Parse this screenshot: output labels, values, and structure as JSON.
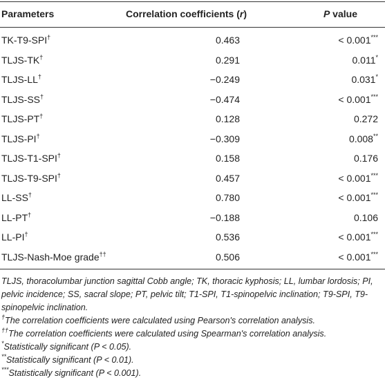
{
  "table": {
    "header": {
      "parameter": "Parameters",
      "r": [
        "Correlation coefficients (",
        "r",
        ")"
      ],
      "p": [
        "P",
        " value"
      ]
    },
    "rows": [
      {
        "name": "TK-T9-SPI",
        "sup": "†",
        "r": "0.463",
        "p": "< 0.001",
        "p_sup": "***"
      },
      {
        "name": "TLJS-TK",
        "sup": "†",
        "r": "0.291",
        "p": "0.011",
        "p_sup": "*"
      },
      {
        "name": "TLJS-LL",
        "sup": "†",
        "r": "−0.249",
        "p": "0.031",
        "p_sup": "*"
      },
      {
        "name": "TLJS-SS",
        "sup": "†",
        "r": "−0.474",
        "p": "< 0.001",
        "p_sup": "***"
      },
      {
        "name": "TLJS-PT",
        "sup": "†",
        "r": "0.128",
        "p": "0.272"
      },
      {
        "name": "TLJS-PI",
        "sup": "†",
        "r": "−0.309",
        "p": "0.008",
        "p_sup": "**"
      },
      {
        "name": "TLJS-T1-SPI",
        "sup": "†",
        "r": "0.158",
        "p": "0.176"
      },
      {
        "name": "TLJS-T9-SPI",
        "sup": "†",
        "r": "0.457",
        "p": "< 0.001",
        "p_sup": "***"
      },
      {
        "name": "LL-SS",
        "sup": "†",
        "r": "0.780",
        "p": "< 0.001",
        "p_sup": "***"
      },
      {
        "name": "LL-PT",
        "sup": "†",
        "r": "−0.188",
        "p": "0.106"
      },
      {
        "name": "LL-PI",
        "sup": "†",
        "r": "0.536",
        "p": "< 0.001",
        "p_sup": "***"
      },
      {
        "name": "TLJS-Nash-Moe grade",
        "sup": "††",
        "r": "0.506",
        "p": "< 0.001",
        "p_sup": "***"
      }
    ]
  },
  "footnotes": [
    {
      "text": "TLJS, thoracolumbar junction sagittal Cobb angle; TK, thoracic kyphosis; LL, lumbar lordosis; PI, pelvic incidence; SS, sacral slope; PT, pelvic tilt; T1-SPI, T1-spinopelvic inclination; T9-SPI, T9-spinopelvic inclination."
    },
    {
      "sup": "†",
      "text": "The correlation coefficients were calculated using Pearson's correlation analysis."
    },
    {
      "sup": "††",
      "text": "The correlation coefficients were calculated using Spearman's correlation analysis."
    },
    {
      "sup": "*",
      "text": "Statistically significant (P < 0.05)."
    },
    {
      "sup": "**",
      "text": "Statistically significant (P < 0.01)."
    },
    {
      "sup": "***",
      "text": "Statistically significant (P < 0.001)."
    }
  ]
}
